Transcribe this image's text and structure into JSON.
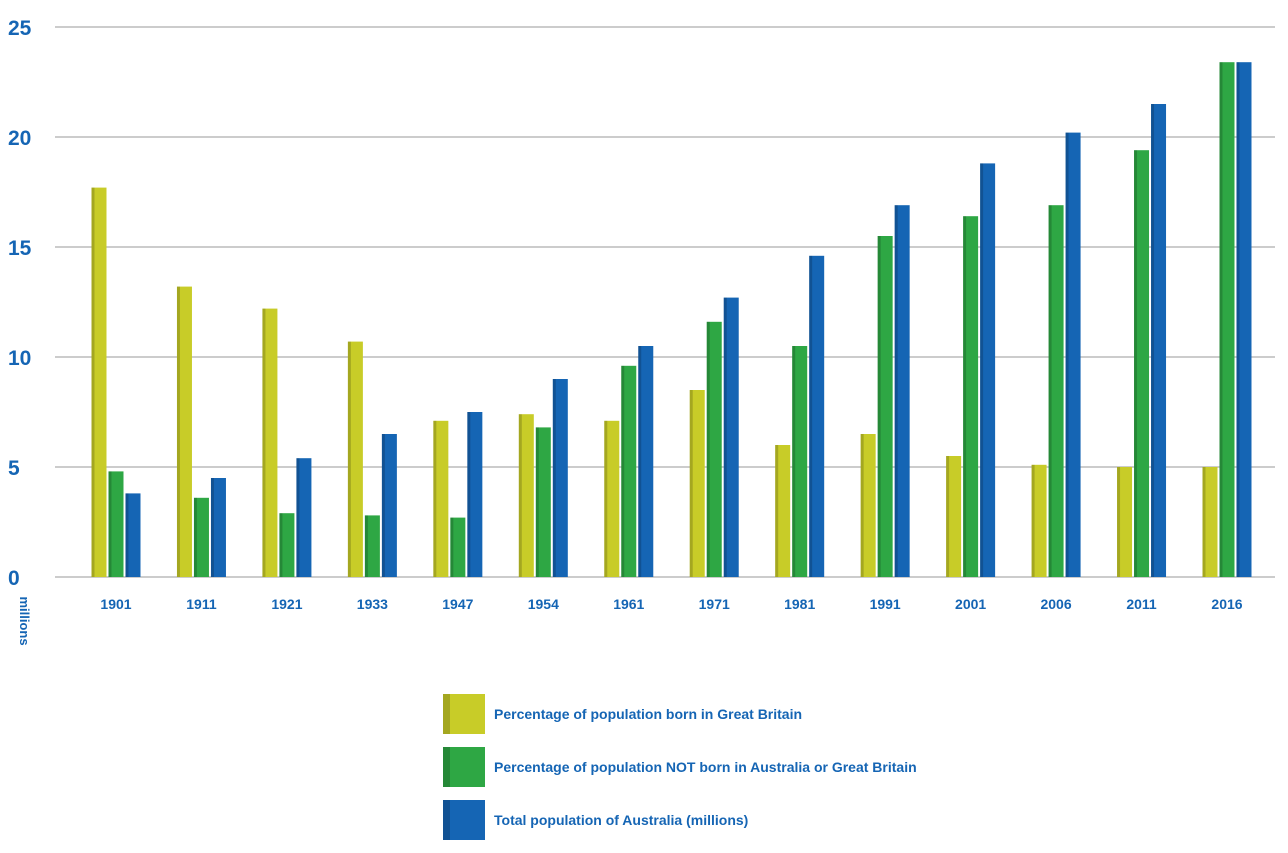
{
  "chart_data": {
    "type": "bar",
    "categories": [
      "1901",
      "1911",
      "1921",
      "1933",
      "1947",
      "1954",
      "1961",
      "1971",
      "1981",
      "1991",
      "2001",
      "2006",
      "2011",
      "2016"
    ],
    "series": [
      {
        "name": "Percentage of population born in Great Britain",
        "color": "#c8cc28",
        "values": [
          17.7,
          13.2,
          12.2,
          10.7,
          7.1,
          7.4,
          7.1,
          8.5,
          6.0,
          6.5,
          5.5,
          5.1,
          5.0,
          5.0
        ]
      },
      {
        "name": "Percentage of population NOT born in Australia or Great Britain",
        "color": "#2ea744",
        "values": [
          4.8,
          3.6,
          2.9,
          2.8,
          2.7,
          6.8,
          9.6,
          11.6,
          10.5,
          15.5,
          16.4,
          16.9,
          19.4,
          23.4
        ]
      },
      {
        "name": "Total population of Australia (millions)",
        "color": "#1565b4",
        "values": [
          3.8,
          4.5,
          5.4,
          6.5,
          7.5,
          9.0,
          10.5,
          12.7,
          14.6,
          16.9,
          18.8,
          20.2,
          21.5,
          23.4
        ]
      }
    ],
    "y_ticks": [
      "0",
      "5",
      "10",
      "15",
      "20",
      "25"
    ],
    "ylabel": "millions",
    "ylim": [
      0,
      25
    ],
    "grid": true,
    "legend_position": "bottom-center"
  }
}
